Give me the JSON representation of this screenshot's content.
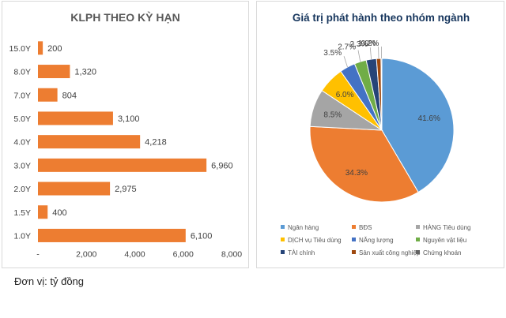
{
  "chart_data": [
    {
      "type": "bar",
      "orientation": "horizontal",
      "title": "KLPH THEO KỲ HẠN",
      "categories": [
        "15.0Y",
        "8.0Y",
        "7.0Y",
        "5.0Y",
        "4.0Y",
        "3.0Y",
        "2.0Y",
        "1.5Y",
        "1.0Y"
      ],
      "values": [
        200,
        1320,
        804,
        3100,
        4218,
        6960,
        2975,
        400,
        6100
      ],
      "value_labels": [
        "200",
        "1,320",
        "804",
        "3,100",
        "4,218",
        "6,960",
        "2,975",
        "400",
        "6,100"
      ],
      "xlim": [
        0,
        8000
      ],
      "xticks": [
        0,
        2000,
        4000,
        6000,
        8000
      ],
      "xtick_labels": [
        "-",
        "2,000",
        "4,000",
        "6,000",
        "8,000"
      ],
      "xlabel": "",
      "ylabel": "",
      "color": "#ed7d31",
      "grid": false
    },
    {
      "type": "pie",
      "title": "Giá trị phát hành theo nhóm ngành",
      "categories": [
        "Ngân hàng",
        "BĐS",
        "HÀNG Tiêu dùng",
        "DỊCH vụ Tiêu dùng",
        "NĂng lượng",
        "Nguyên vật liệu",
        "TÀI chính",
        "Sản xuất công nghiệp",
        "Chứng khoán"
      ],
      "values": [
        41.6,
        34.3,
        8.5,
        6.0,
        3.5,
        2.7,
        2.3,
        1.0,
        0.2
      ],
      "value_labels": [
        "41.6%",
        "34.3%",
        "8.5%",
        "6.0%",
        "3.5%",
        "2.7%",
        "2.3%",
        "1.0%",
        "0.2%"
      ],
      "colors": [
        "#5b9bd5",
        "#ed7d31",
        "#a5a5a5",
        "#ffc000",
        "#4472c4",
        "#70ad47",
        "#264478",
        "#9e480e",
        "#636363"
      ],
      "legend_position": "bottom"
    }
  ],
  "footer": {
    "unit_note": "Đơn vị: tỷ đồng"
  }
}
